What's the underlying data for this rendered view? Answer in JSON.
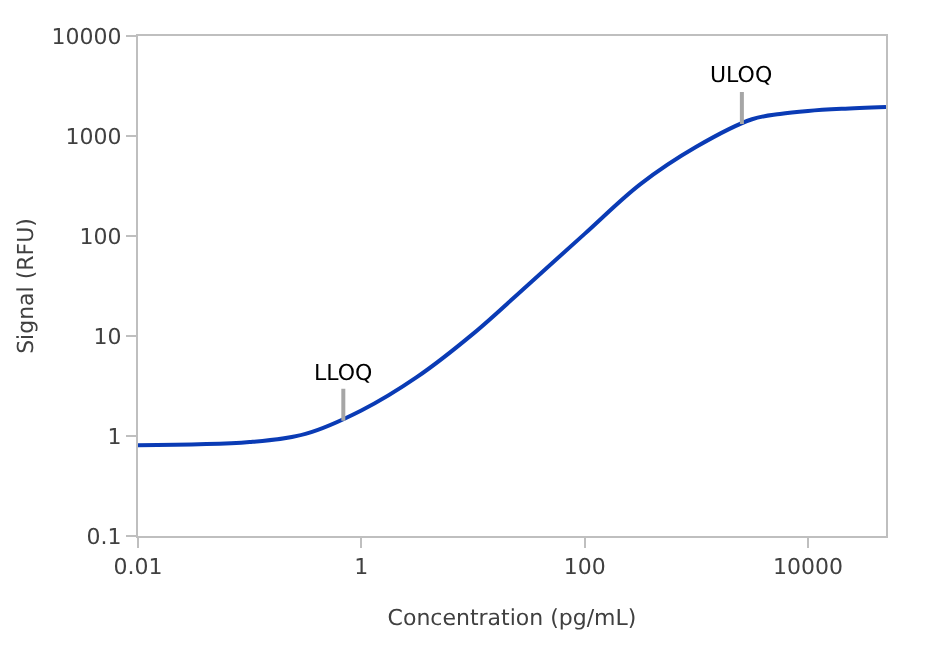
{
  "chart_data": {
    "type": "line",
    "xlabel": "Concentration (pg/mL)",
    "ylabel": "Signal (RFU)",
    "x": [
      0.01,
      0.1,
      0.316,
      1,
      3.16,
      10,
      31.6,
      100,
      316,
      1000,
      3160,
      5620,
      10000,
      20000,
      50000
    ],
    "series": [
      {
        "color": "#0a3bb5",
        "values": [
          0.81,
          0.87,
          1.05,
          1.8,
          3.9,
          10.5,
          33,
          105,
          330,
          780,
          1470,
          1660,
          1780,
          1870,
          1950
        ]
      }
    ],
    "annotations": [
      {
        "text": "LLOQ",
        "x": 0.69,
        "y": 1.42
      },
      {
        "text": "ULOQ",
        "x": 2560,
        "y": 1320
      }
    ],
    "log": "xy",
    "xlim": [
      0.01,
      50000
    ],
    "ylim": [
      0.1,
      10000
    ],
    "xticks": [
      0.01,
      1,
      100,
      10000
    ],
    "yticks": [
      0.1,
      1,
      10,
      100,
      1000,
      10000
    ],
    "legend": false,
    "marker": "none",
    "line_style": "solid"
  }
}
